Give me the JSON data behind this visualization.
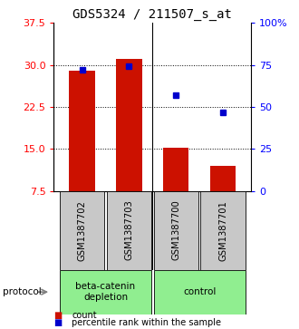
{
  "title": "GDS5324 / 211507_s_at",
  "categories": [
    "GSM1387702",
    "GSM1387703",
    "GSM1387700",
    "GSM1387701"
  ],
  "bar_values": [
    29.0,
    31.1,
    15.2,
    12.0
  ],
  "percentile_values": [
    72.0,
    74.5,
    57.0,
    46.5
  ],
  "bar_color": "#cc1100",
  "marker_color": "#0000cc",
  "left_ylim": [
    7.5,
    37.5
  ],
  "left_yticks": [
    7.5,
    15.0,
    22.5,
    30.0,
    37.5
  ],
  "right_ylim": [
    0,
    100
  ],
  "right_yticks": [
    0,
    25,
    50,
    75,
    100
  ],
  "right_yticklabels": [
    "0",
    "25",
    "50",
    "75",
    "100%"
  ],
  "protocol_groups": [
    {
      "label": "beta-catenin\ndepletion",
      "indices": [
        0,
        1
      ],
      "color": "#90EE90"
    },
    {
      "label": "control",
      "indices": [
        2,
        3
      ],
      "color": "#90EE90"
    }
  ],
  "protocol_label": "protocol",
  "legend_count_label": "count",
  "legend_percentile_label": "percentile rank within the sample",
  "bg_color": "#ffffff",
  "plot_bg_color": "#ffffff",
  "label_area_color": "#c8c8c8",
  "title_fontsize": 10,
  "tick_fontsize": 8
}
